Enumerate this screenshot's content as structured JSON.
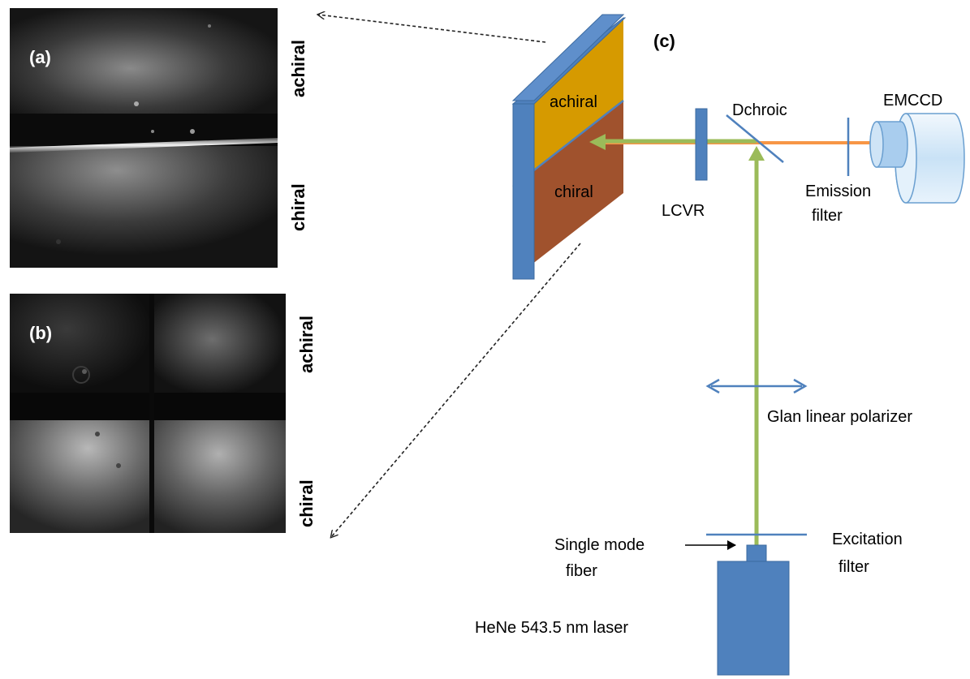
{
  "panels": {
    "a": {
      "tag": "(a)",
      "top_label": "achiral",
      "bottom_label": "chiral"
    },
    "b": {
      "tag": "(b)",
      "top_label": "achiral",
      "bottom_label": "chiral"
    },
    "c": {
      "tag": "(c)"
    }
  },
  "sample": {
    "top_label": "achiral",
    "bottom_label": "chiral"
  },
  "components": {
    "emccd": "EMCCD",
    "dichroic": "Dchroic",
    "lcvr": "LCVR",
    "emission_filter_line1": "Emission",
    "emission_filter_line2": "filter",
    "polarizer": "Glan linear polarizer",
    "excitation_filter_line1": "Excitation",
    "excitation_filter_line2": "filter",
    "fiber_line1": "Single mode",
    "fiber_line2": "fiber",
    "laser": "HeNe 543.5 nm laser"
  },
  "colors": {
    "component_blue": "#4f81bd",
    "excitation_beam": "#9bbb59",
    "emission_beam": "#f79646",
    "achiral_layer": "#d69a00",
    "chiral_layer": "#a0522d"
  }
}
